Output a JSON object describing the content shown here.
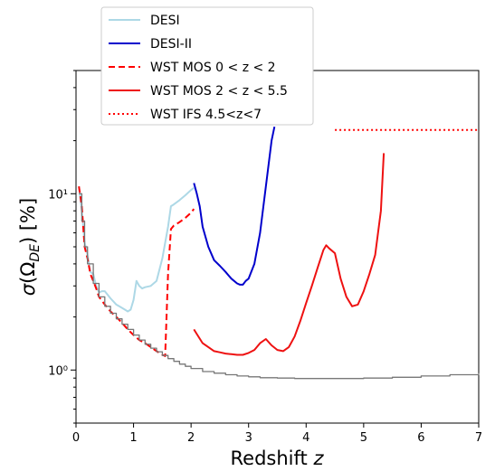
{
  "chart_data": {
    "type": "line",
    "title": "",
    "xlabel": "Redshift z",
    "ylabel": "σ(Ω_DE) [%]",
    "xlim": [
      0,
      7
    ],
    "ylim": [
      0.5,
      50
    ],
    "yscale": "log",
    "grid": false,
    "legend_position": "top-left",
    "x_ticks": [
      0,
      1,
      2,
      3,
      4,
      5,
      6,
      7
    ],
    "x_tick_labels": [
      "0",
      "1",
      "2",
      "3",
      "4",
      "5",
      "6",
      "7"
    ],
    "y_ticks": [
      1,
      10
    ],
    "y_tick_labels": [
      "10⁰",
      "10¹"
    ],
    "series": [
      {
        "name": "DESI",
        "color": "#add8e6",
        "dash": "solid",
        "x": [
          0.05,
          0.1,
          0.15,
          0.2,
          0.25,
          0.3,
          0.35,
          0.4,
          0.45,
          0.5,
          0.6,
          0.7,
          0.8,
          0.85,
          0.9,
          0.95,
          1.0,
          1.05,
          1.1,
          1.15,
          1.2,
          1.3,
          1.4,
          1.5,
          1.6,
          1.65,
          1.7,
          1.8,
          1.9,
          2.0,
          2.05
        ],
        "y": [
          11.0,
          8.0,
          5.3,
          4.5,
          3.6,
          3.5,
          3.0,
          2.75,
          2.8,
          2.8,
          2.55,
          2.35,
          2.25,
          2.2,
          2.15,
          2.2,
          2.5,
          3.2,
          3.0,
          2.9,
          2.95,
          3.0,
          3.2,
          4.3,
          6.5,
          8.5,
          8.7,
          9.2,
          9.8,
          10.5,
          10.8
        ]
      },
      {
        "name": "DESI-II",
        "color": "#0000cc",
        "dash": "solid",
        "x": [
          2.05,
          2.1,
          2.15,
          2.2,
          2.3,
          2.4,
          2.5,
          2.6,
          2.7,
          2.8,
          2.85,
          2.9,
          2.95,
          3.0,
          3.1,
          3.2,
          3.3,
          3.4,
          3.45
        ],
        "y": [
          11.5,
          10.0,
          8.5,
          6.5,
          5.0,
          4.2,
          3.9,
          3.6,
          3.3,
          3.1,
          3.05,
          3.05,
          3.2,
          3.3,
          4.0,
          6.0,
          11.0,
          20.0,
          24.0
        ]
      },
      {
        "name": "WST MOS 0 < z < 2",
        "color": "#ff0000",
        "dash": "dashed",
        "x": [
          0.05,
          0.1,
          0.15,
          0.2,
          0.25,
          0.3,
          0.35,
          0.4,
          0.5,
          0.6,
          0.7,
          0.8,
          0.9,
          1.0,
          1.1,
          1.2,
          1.3,
          1.4,
          1.5,
          1.55,
          1.6,
          1.65,
          1.7,
          1.8,
          1.9,
          2.0,
          2.05
        ],
        "y": [
          11.0,
          8.5,
          5.0,
          4.3,
          3.5,
          3.2,
          2.9,
          2.6,
          2.35,
          2.15,
          2.0,
          1.85,
          1.7,
          1.58,
          1.48,
          1.42,
          1.35,
          1.28,
          1.22,
          1.2,
          3.5,
          6.3,
          6.6,
          6.9,
          7.3,
          7.8,
          8.2
        ]
      },
      {
        "name": "WST MOS 2 < z < 5.5",
        "color": "#ee1111",
        "dash": "solid",
        "x": [
          2.05,
          2.1,
          2.2,
          2.3,
          2.4,
          2.5,
          2.6,
          2.7,
          2.8,
          2.9,
          3.0,
          3.1,
          3.2,
          3.3,
          3.4,
          3.5,
          3.6,
          3.7,
          3.8,
          3.9,
          4.0,
          4.1,
          4.2,
          4.3,
          4.35,
          4.4,
          4.5,
          4.6,
          4.7,
          4.8,
          4.9,
          5.0,
          5.1,
          5.2,
          5.3,
          5.35
        ],
        "y": [
          1.7,
          1.6,
          1.42,
          1.35,
          1.28,
          1.26,
          1.24,
          1.23,
          1.22,
          1.22,
          1.25,
          1.3,
          1.42,
          1.5,
          1.38,
          1.3,
          1.28,
          1.35,
          1.55,
          1.9,
          2.4,
          3.0,
          3.8,
          4.8,
          5.1,
          4.9,
          4.6,
          3.3,
          2.6,
          2.3,
          2.35,
          2.8,
          3.5,
          4.5,
          8.0,
          17.0
        ]
      },
      {
        "name": "WST IFS 4.5<z<7",
        "color": "#ff0000",
        "dash": "dotted",
        "x": [
          4.5,
          7.0
        ],
        "y": [
          23.0,
          23.0
        ]
      },
      {
        "name": "",
        "color": "#777777",
        "dash": "solid",
        "step": true,
        "x": [
          0.05,
          0.1,
          0.15,
          0.2,
          0.3,
          0.4,
          0.5,
          0.6,
          0.7,
          0.8,
          0.9,
          1.0,
          1.1,
          1.2,
          1.3,
          1.4,
          1.5,
          1.6,
          1.7,
          1.8,
          1.9,
          2.0,
          2.2,
          2.4,
          2.6,
          2.8,
          3.0,
          3.2,
          3.5,
          3.8,
          4.0,
          4.5,
          5.0,
          5.5,
          6.0,
          6.5,
          7.0
        ],
        "y": [
          10.0,
          7.0,
          5.0,
          4.0,
          3.1,
          2.6,
          2.3,
          2.1,
          1.95,
          1.82,
          1.7,
          1.58,
          1.48,
          1.4,
          1.33,
          1.27,
          1.21,
          1.16,
          1.12,
          1.08,
          1.05,
          1.02,
          0.98,
          0.96,
          0.94,
          0.925,
          0.915,
          0.905,
          0.9,
          0.895,
          0.895,
          0.895,
          0.9,
          0.91,
          0.925,
          0.94,
          0.96
        ]
      }
    ]
  }
}
